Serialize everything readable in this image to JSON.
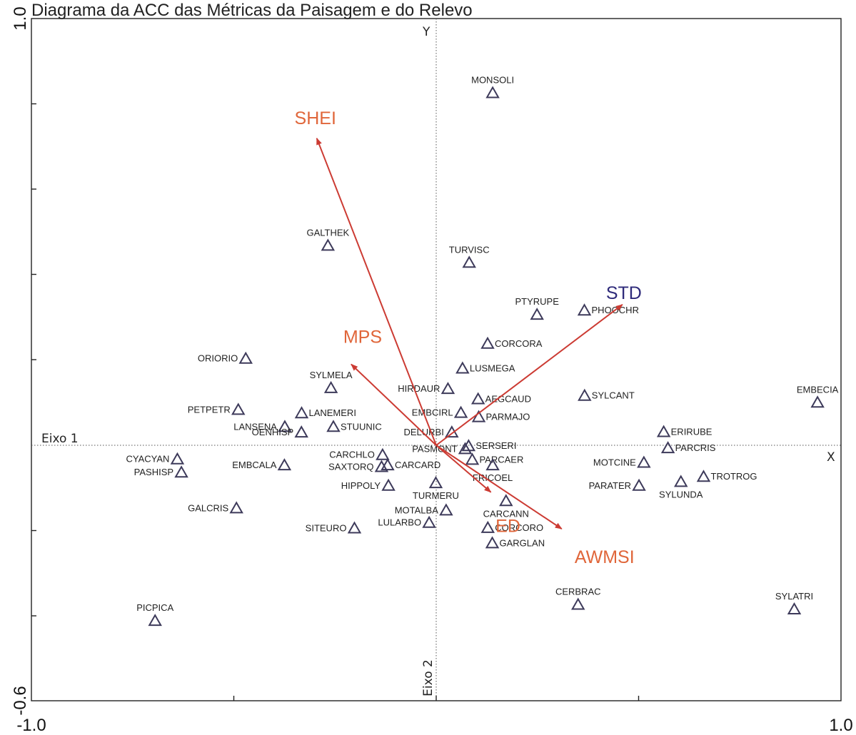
{
  "chart_data": {
    "type": "scatter",
    "title": "Diagrama da ACC das Métricas da Paisagem e do Relevo",
    "xlim": [
      -1.0,
      1.0
    ],
    "ylim": [
      -0.6,
      1.0
    ],
    "x_tick_labels": [
      "-1.0",
      "1.0"
    ],
    "y_tick_labels": [
      "1.0",
      "-0.6"
    ],
    "axis_names": {
      "vertical_top": "Y",
      "horizontal_right": "X"
    },
    "axis_titles": {
      "axis1": "Eixo 1",
      "axis2": "Eixo 2"
    },
    "grid": false,
    "colors": {
      "species": "#3d3a5a",
      "vector": "#cc3b33",
      "vector_label": "#e0663a",
      "std_label": "#2e2a7a"
    },
    "vectors": [
      {
        "label": "SHEI",
        "x": -0.59,
        "y": 0.72
      },
      {
        "label": "MPS",
        "x": -0.42,
        "y": 0.19
      },
      {
        "label": "STD",
        "x": 0.92,
        "y": 0.33
      },
      {
        "label": "ED",
        "x": 0.27,
        "y": -0.11
      },
      {
        "label": "AWMSI",
        "x": 0.62,
        "y": -0.196
      }
    ],
    "species": [
      {
        "label": "MONSOLI",
        "x": 0.279,
        "y": 0.826
      },
      {
        "label": "GALTHEK",
        "x": -0.535,
        "y": 0.468
      },
      {
        "label": "TURVISC",
        "x": 0.163,
        "y": 0.428
      },
      {
        "label": "PTYRUPE",
        "x": 0.498,
        "y": 0.306
      },
      {
        "label": "PHOOCHR",
        "x": 0.732,
        "y": 0.316
      },
      {
        "label": "CORCORA",
        "x": 0.254,
        "y": 0.238
      },
      {
        "label": "ORIORIO",
        "x": -0.941,
        "y": 0.203
      },
      {
        "label": "LUSMEGA",
        "x": 0.13,
        "y": 0.18
      },
      {
        "label": "SYLMELA",
        "x": -0.52,
        "y": 0.134
      },
      {
        "label": "HIRDAUR",
        "x": 0.058,
        "y": 0.132
      },
      {
        "label": "AEGCAUD",
        "x": 0.207,
        "y": 0.108
      },
      {
        "label": "SYLCANT",
        "x": 0.733,
        "y": 0.116
      },
      {
        "label": "EMBECIA",
        "x": 1.884,
        "y": 0.1
      },
      {
        "label": "PETPETR",
        "x": -0.978,
        "y": 0.083
      },
      {
        "label": "LANEMERI",
        "x": -0.665,
        "y": 0.075
      },
      {
        "label": "EMBCIRL",
        "x": 0.122,
        "y": 0.076
      },
      {
        "label": "PARMAJO",
        "x": 0.21,
        "y": 0.066
      },
      {
        "label": "LANSENA",
        "x": -0.748,
        "y": 0.043
      },
      {
        "label": "STUUNIC",
        "x": -0.508,
        "y": 0.043
      },
      {
        "label": "OENHISP",
        "x": -0.666,
        "y": 0.03
      },
      {
        "label": "DELURBI",
        "x": 0.077,
        "y": 0.03
      },
      {
        "label": "ERIRUBE",
        "x": 1.124,
        "y": 0.031
      },
      {
        "label": "SERSERI",
        "x": 0.16,
        "y": -0.002
      },
      {
        "label": "PASMONT",
        "x": 0.143,
        "y": -0.009
      },
      {
        "label": "PARCRIS",
        "x": 1.145,
        "y": -0.007
      },
      {
        "label": "CARCHLO",
        "x": -0.265,
        "y": -0.023
      },
      {
        "label": "CYACYAN",
        "x": -1.279,
        "y": -0.033
      },
      {
        "label": "MOTCINE",
        "x": 1.026,
        "y": -0.041
      },
      {
        "label": "PARCAER",
        "x": 0.178,
        "y": -0.034
      },
      {
        "label": "EMBCALA",
        "x": -0.75,
        "y": -0.047
      },
      {
        "label": "SAXTORQ",
        "x": -0.27,
        "y": -0.051
      },
      {
        "label": "CARCARD",
        "x": -0.24,
        "y": -0.047
      },
      {
        "label": "FRICOEL",
        "x": 0.279,
        "y": -0.047
      },
      {
        "label": "PASHISP",
        "x": -1.259,
        "y": -0.064
      },
      {
        "label": "TROTROG",
        "x": 1.321,
        "y": -0.074
      },
      {
        "label": "SYLUNDA",
        "x": 1.209,
        "y": -0.086
      },
      {
        "label": "TURMERU",
        "x": -0.002,
        "y": -0.089
      },
      {
        "label": "HIPPOLY",
        "x": -0.236,
        "y": -0.095
      },
      {
        "label": "PARATER",
        "x": 1.002,
        "y": -0.095
      },
      {
        "label": "CARCANN",
        "x": 0.345,
        "y": -0.131
      },
      {
        "label": "GALCRIS",
        "x": -0.987,
        "y": -0.148
      },
      {
        "label": "MOTALBA",
        "x": 0.049,
        "y": -0.153
      },
      {
        "label": "LULARBO",
        "x": -0.035,
        "y": -0.182
      },
      {
        "label": "SITEURO",
        "x": -0.404,
        "y": -0.195
      },
      {
        "label": "CORCORO",
        "x": 0.255,
        "y": -0.194
      },
      {
        "label": "GARGLAN",
        "x": 0.277,
        "y": -0.23
      },
      {
        "label": "CERBRAC",
        "x": 0.701,
        "y": -0.374
      },
      {
        "label": "SYLATRI",
        "x": 1.769,
        "y": -0.385
      },
      {
        "label": "PICPICA",
        "x": -1.389,
        "y": -0.412
      }
    ]
  }
}
